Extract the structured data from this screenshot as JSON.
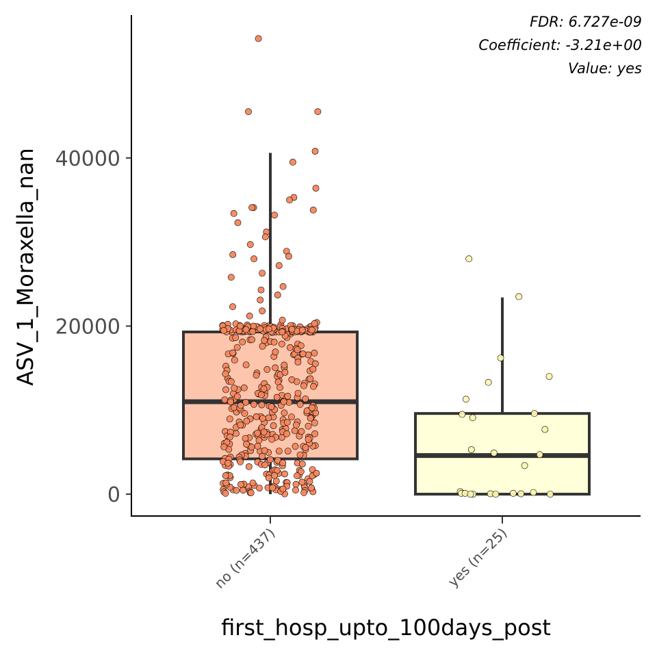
{
  "chart_data": {
    "type": "box",
    "xlabel": "first_hosp_upto_100days_post",
    "ylabel": "ASV_1_Moraxella_nan",
    "ylim": [
      -2600,
      57000
    ],
    "yticks": [
      0,
      20000,
      40000
    ],
    "annotations": [
      "FDR: 6.727e-09",
      "Coefficient: -3.21e+00",
      "Value: yes"
    ],
    "legend": "none",
    "grid": false,
    "groups": [
      {
        "label": "no (n=437)",
        "fill": "#fcc5ac",
        "point_color": "#f4875e",
        "q1": 4200,
        "median": 11000,
        "q3": 19300,
        "whisker_low": 0,
        "whisker_high": 40600,
        "n_points": 437,
        "outliers": [
          54200,
          45500,
          45500
        ],
        "highlight_points": [
          40800,
          39500,
          36400,
          35300,
          35000,
          34100,
          34100,
          33800,
          33400,
          33200,
          32300,
          31200,
          30600,
          29700,
          28900,
          28500,
          28300,
          28000,
          27200,
          26300,
          25800,
          24700,
          24300,
          23700,
          23100,
          22300,
          21800,
          21200,
          20700,
          20300,
          20000
        ]
      },
      {
        "label": "yes (n=25)",
        "fill": "#ffffd9",
        "point_color": "#fdf6b2",
        "q1": 0,
        "median": 4600,
        "q3": 9600,
        "whisker_low": 0,
        "whisker_high": 23400,
        "n_points": 25,
        "points": [
          28000,
          23500,
          16200,
          14000,
          13300,
          11300,
          9600,
          9500,
          9100,
          7700,
          5300,
          4900,
          4700,
          3400,
          300,
          200,
          100,
          100,
          100,
          50,
          50,
          0,
          0,
          0,
          0
        ]
      }
    ]
  }
}
